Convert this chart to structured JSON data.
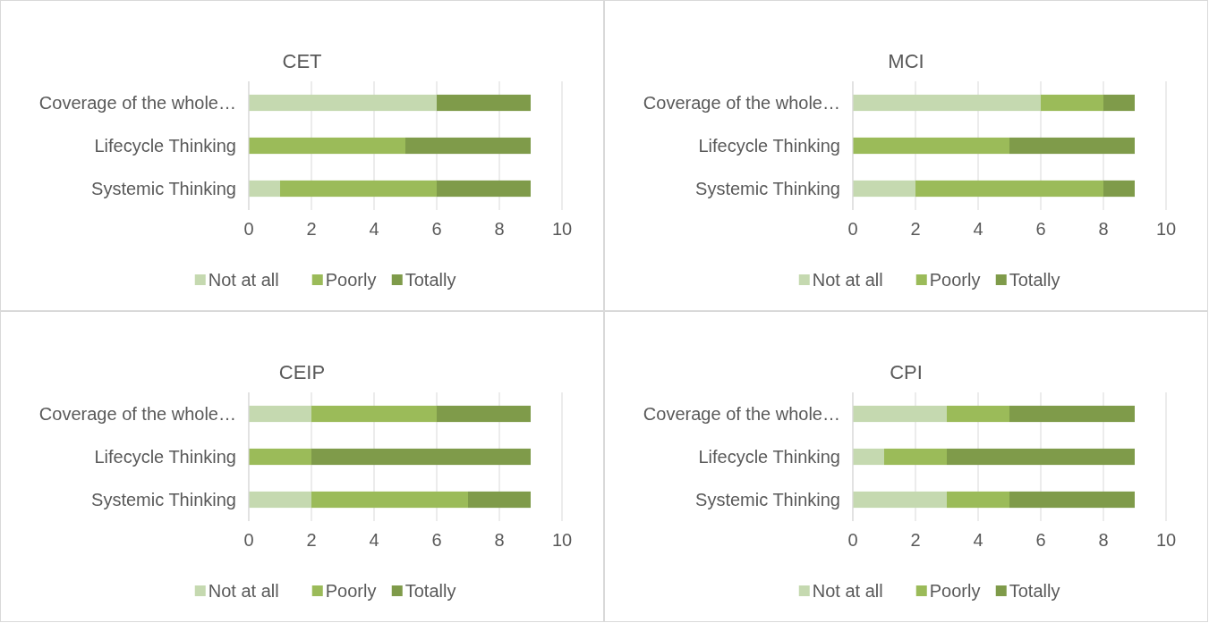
{
  "chart_data": [
    {
      "type": "bar",
      "orientation": "horizontal",
      "stacked": true,
      "title": "CET",
      "categories": [
        "Coverage of the whole…",
        "Lifecycle Thinking",
        "Systemic Thinking"
      ],
      "series": [
        {
          "name": "Not at all",
          "color": "#c5d9b0",
          "values": [
            6,
            0,
            1
          ]
        },
        {
          "name": "Poorly",
          "color": "#9bbb59",
          "values": [
            0,
            5,
            5
          ]
        },
        {
          "name": "Totally",
          "color": "#7f9b4a",
          "values": [
            3,
            4,
            3
          ]
        }
      ],
      "xlim": [
        0,
        10
      ],
      "xticks": [
        0,
        2,
        4,
        6,
        8,
        10
      ],
      "grid": "x",
      "legend": "bottom"
    },
    {
      "type": "bar",
      "orientation": "horizontal",
      "stacked": true,
      "title": "MCI",
      "categories": [
        "Coverage of the whole…",
        "Lifecycle Thinking",
        "Systemic Thinking"
      ],
      "series": [
        {
          "name": "Not at all",
          "color": "#c5d9b0",
          "values": [
            6,
            0,
            2
          ]
        },
        {
          "name": "Poorly",
          "color": "#9bbb59",
          "values": [
            2,
            5,
            6
          ]
        },
        {
          "name": "Totally",
          "color": "#7f9b4a",
          "values": [
            1,
            4,
            1
          ]
        }
      ],
      "xlim": [
        0,
        10
      ],
      "xticks": [
        0,
        2,
        4,
        6,
        8,
        10
      ],
      "grid": "x",
      "legend": "bottom"
    },
    {
      "type": "bar",
      "orientation": "horizontal",
      "stacked": true,
      "title": "CEIP",
      "categories": [
        "Coverage of the whole…",
        "Lifecycle Thinking",
        "Systemic Thinking"
      ],
      "series": [
        {
          "name": "Not at all",
          "color": "#c5d9b0",
          "values": [
            2,
            0,
            2
          ]
        },
        {
          "name": "Poorly",
          "color": "#9bbb59",
          "values": [
            4,
            2,
            5
          ]
        },
        {
          "name": "Totally",
          "color": "#7f9b4a",
          "values": [
            3,
            7,
            2
          ]
        }
      ],
      "xlim": [
        0,
        10
      ],
      "xticks": [
        0,
        2,
        4,
        6,
        8,
        10
      ],
      "grid": "x",
      "legend": "bottom"
    },
    {
      "type": "bar",
      "orientation": "horizontal",
      "stacked": true,
      "title": "CPI",
      "categories": [
        "Coverage of the whole…",
        "Lifecycle Thinking",
        "Systemic Thinking"
      ],
      "series": [
        {
          "name": "Not at all",
          "color": "#c5d9b0",
          "values": [
            3,
            1,
            3
          ]
        },
        {
          "name": "Poorly",
          "color": "#9bbb59",
          "values": [
            2,
            2,
            2
          ]
        },
        {
          "name": "Totally",
          "color": "#7f9b4a",
          "values": [
            4,
            6,
            4
          ]
        }
      ],
      "xlim": [
        0,
        10
      ],
      "xticks": [
        0,
        2,
        4,
        6,
        8,
        10
      ],
      "grid": "x",
      "legend": "bottom"
    }
  ]
}
